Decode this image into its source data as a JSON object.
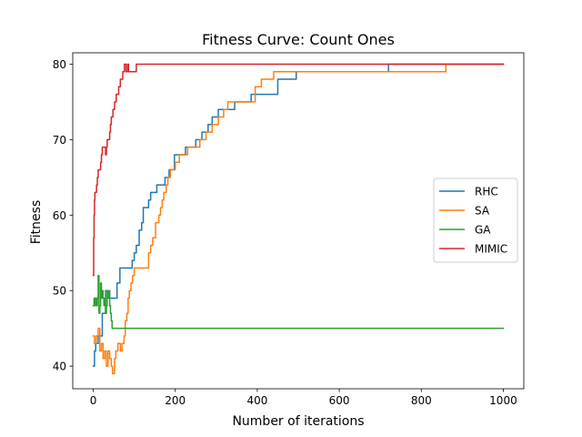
{
  "chart_data": {
    "type": "line",
    "title": "Fitness Curve: Count Ones",
    "xlabel": "Number of iterations",
    "ylabel": "Fitness",
    "xlim": [
      -50,
      1050
    ],
    "ylim": [
      37,
      81.5
    ],
    "xticks": [
      0,
      200,
      400,
      600,
      800,
      1000
    ],
    "yticks": [
      40,
      50,
      60,
      70,
      80
    ],
    "grid": false,
    "legend_position": "center-right",
    "series": [
      {
        "name": "RHC",
        "color": "#1f77b4",
        "points": [
          [
            0,
            40
          ],
          [
            3,
            40
          ],
          [
            3,
            42
          ],
          [
            6,
            42
          ],
          [
            6,
            43
          ],
          [
            12,
            43
          ],
          [
            12,
            44
          ],
          [
            22,
            44
          ],
          [
            22,
            47
          ],
          [
            30,
            47
          ],
          [
            30,
            50
          ],
          [
            40,
            50
          ],
          [
            40,
            49
          ],
          [
            58,
            49
          ],
          [
            58,
            51
          ],
          [
            65,
            51
          ],
          [
            65,
            53
          ],
          [
            95,
            53
          ],
          [
            95,
            54
          ],
          [
            100,
            54
          ],
          [
            100,
            55
          ],
          [
            105,
            55
          ],
          [
            105,
            56
          ],
          [
            112,
            56
          ],
          [
            112,
            58
          ],
          [
            118,
            58
          ],
          [
            118,
            59
          ],
          [
            122,
            59
          ],
          [
            122,
            61
          ],
          [
            135,
            61
          ],
          [
            135,
            62
          ],
          [
            140,
            62
          ],
          [
            140,
            63
          ],
          [
            155,
            63
          ],
          [
            155,
            64
          ],
          [
            175,
            64
          ],
          [
            175,
            65
          ],
          [
            185,
            65
          ],
          [
            185,
            66
          ],
          [
            198,
            66
          ],
          [
            198,
            68
          ],
          [
            225,
            68
          ],
          [
            225,
            69
          ],
          [
            250,
            69
          ],
          [
            250,
            70
          ],
          [
            265,
            70
          ],
          [
            265,
            71
          ],
          [
            280,
            71
          ],
          [
            280,
            72
          ],
          [
            290,
            72
          ],
          [
            290,
            73
          ],
          [
            305,
            73
          ],
          [
            305,
            74
          ],
          [
            345,
            74
          ],
          [
            345,
            75
          ],
          [
            385,
            75
          ],
          [
            385,
            76
          ],
          [
            450,
            76
          ],
          [
            450,
            78
          ],
          [
            495,
            78
          ],
          [
            495,
            79
          ],
          [
            720,
            79
          ],
          [
            720,
            80
          ],
          [
            1000,
            80
          ]
        ]
      },
      {
        "name": "SA",
        "color": "#ff7f0e",
        "points": [
          [
            0,
            44
          ],
          [
            3,
            44
          ],
          [
            3,
            43
          ],
          [
            7,
            43
          ],
          [
            7,
            44
          ],
          [
            12,
            44
          ],
          [
            12,
            45
          ],
          [
            16,
            45
          ],
          [
            16,
            42
          ],
          [
            20,
            42
          ],
          [
            20,
            43
          ],
          [
            24,
            43
          ],
          [
            24,
            41
          ],
          [
            28,
            41
          ],
          [
            28,
            42
          ],
          [
            32,
            42
          ],
          [
            32,
            40
          ],
          [
            36,
            40
          ],
          [
            36,
            42
          ],
          [
            40,
            42
          ],
          [
            40,
            41
          ],
          [
            44,
            41
          ],
          [
            44,
            40
          ],
          [
            47,
            40
          ],
          [
            47,
            39
          ],
          [
            52,
            39
          ],
          [
            52,
            41
          ],
          [
            55,
            41
          ],
          [
            55,
            42
          ],
          [
            60,
            42
          ],
          [
            60,
            43
          ],
          [
            66,
            43
          ],
          [
            66,
            42
          ],
          [
            70,
            42
          ],
          [
            70,
            43
          ],
          [
            75,
            43
          ],
          [
            75,
            44
          ],
          [
            78,
            44
          ],
          [
            78,
            46
          ],
          [
            82,
            46
          ],
          [
            82,
            47
          ],
          [
            85,
            47
          ],
          [
            85,
            49
          ],
          [
            88,
            49
          ],
          [
            88,
            50
          ],
          [
            92,
            50
          ],
          [
            92,
            51
          ],
          [
            96,
            51
          ],
          [
            96,
            52
          ],
          [
            100,
            52
          ],
          [
            100,
            53
          ],
          [
            135,
            53
          ],
          [
            135,
            55
          ],
          [
            140,
            55
          ],
          [
            140,
            56
          ],
          [
            145,
            56
          ],
          [
            145,
            57
          ],
          [
            152,
            57
          ],
          [
            152,
            59
          ],
          [
            160,
            59
          ],
          [
            160,
            60
          ],
          [
            164,
            60
          ],
          [
            164,
            61
          ],
          [
            168,
            61
          ],
          [
            168,
            62
          ],
          [
            172,
            62
          ],
          [
            172,
            63
          ],
          [
            178,
            63
          ],
          [
            178,
            64
          ],
          [
            182,
            64
          ],
          [
            182,
            65
          ],
          [
            188,
            65
          ],
          [
            188,
            66
          ],
          [
            200,
            66
          ],
          [
            200,
            67
          ],
          [
            210,
            67
          ],
          [
            210,
            68
          ],
          [
            230,
            68
          ],
          [
            230,
            69
          ],
          [
            260,
            69
          ],
          [
            260,
            70
          ],
          [
            275,
            70
          ],
          [
            275,
            71
          ],
          [
            290,
            71
          ],
          [
            290,
            72
          ],
          [
            305,
            72
          ],
          [
            305,
            73
          ],
          [
            318,
            73
          ],
          [
            318,
            74
          ],
          [
            328,
            74
          ],
          [
            328,
            75
          ],
          [
            395,
            75
          ],
          [
            395,
            77
          ],
          [
            410,
            77
          ],
          [
            410,
            78
          ],
          [
            440,
            78
          ],
          [
            440,
            79
          ],
          [
            860,
            79
          ],
          [
            860,
            80
          ],
          [
            1000,
            80
          ]
        ]
      },
      {
        "name": "GA",
        "color": "#2ca02c",
        "points": [
          [
            0,
            48
          ],
          [
            2,
            48
          ],
          [
            2,
            49
          ],
          [
            4,
            49
          ],
          [
            4,
            48
          ],
          [
            6,
            48
          ],
          [
            6,
            49
          ],
          [
            8,
            49
          ],
          [
            8,
            48
          ],
          [
            10,
            48
          ],
          [
            10,
            49
          ],
          [
            12,
            49
          ],
          [
            12,
            52
          ],
          [
            14,
            52
          ],
          [
            14,
            47
          ],
          [
            16,
            47
          ],
          [
            16,
            48
          ],
          [
            18,
            48
          ],
          [
            18,
            51
          ],
          [
            20,
            51
          ],
          [
            20,
            49
          ],
          [
            22,
            49
          ],
          [
            22,
            50
          ],
          [
            24,
            50
          ],
          [
            24,
            49
          ],
          [
            26,
            49
          ],
          [
            26,
            48
          ],
          [
            28,
            48
          ],
          [
            28,
            49
          ],
          [
            30,
            49
          ],
          [
            30,
            47
          ],
          [
            32,
            47
          ],
          [
            32,
            48
          ],
          [
            34,
            48
          ],
          [
            34,
            50
          ],
          [
            36,
            50
          ],
          [
            36,
            49
          ],
          [
            38,
            49
          ],
          [
            38,
            50
          ],
          [
            40,
            50
          ],
          [
            40,
            48
          ],
          [
            42,
            48
          ],
          [
            42,
            47
          ],
          [
            44,
            47
          ],
          [
            44,
            46
          ],
          [
            46,
            46
          ],
          [
            46,
            45
          ],
          [
            1000,
            45
          ]
        ]
      },
      {
        "name": "MIMIC",
        "color": "#d62728",
        "points": [
          [
            0,
            52
          ],
          [
            1,
            52
          ],
          [
            1,
            57
          ],
          [
            2,
            57
          ],
          [
            2,
            60
          ],
          [
            3,
            60
          ],
          [
            3,
            62
          ],
          [
            4,
            62
          ],
          [
            4,
            63
          ],
          [
            8,
            63
          ],
          [
            8,
            64
          ],
          [
            10,
            64
          ],
          [
            10,
            65
          ],
          [
            12,
            65
          ],
          [
            12,
            66
          ],
          [
            18,
            66
          ],
          [
            18,
            67
          ],
          [
            20,
            67
          ],
          [
            20,
            68
          ],
          [
            22,
            68
          ],
          [
            22,
            69
          ],
          [
            30,
            69
          ],
          [
            30,
            68
          ],
          [
            32,
            68
          ],
          [
            32,
            69
          ],
          [
            34,
            69
          ],
          [
            34,
            70
          ],
          [
            40,
            70
          ],
          [
            40,
            71
          ],
          [
            42,
            71
          ],
          [
            42,
            72
          ],
          [
            44,
            72
          ],
          [
            44,
            73
          ],
          [
            48,
            73
          ],
          [
            48,
            74
          ],
          [
            52,
            74
          ],
          [
            52,
            75
          ],
          [
            56,
            75
          ],
          [
            56,
            76
          ],
          [
            62,
            76
          ],
          [
            62,
            77
          ],
          [
            66,
            77
          ],
          [
            66,
            78
          ],
          [
            72,
            78
          ],
          [
            72,
            79
          ],
          [
            76,
            79
          ],
          [
            76,
            80
          ],
          [
            80,
            80
          ],
          [
            80,
            79
          ],
          [
            84,
            79
          ],
          [
            84,
            80
          ],
          [
            86,
            80
          ],
          [
            86,
            79
          ],
          [
            105,
            79
          ],
          [
            105,
            80
          ],
          [
            1000,
            80
          ]
        ]
      }
    ]
  }
}
